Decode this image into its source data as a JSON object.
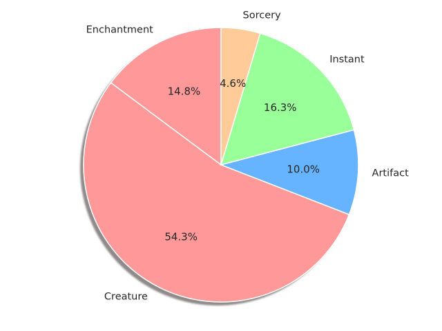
{
  "chart_data": {
    "type": "pie",
    "title": "",
    "start_angle_deg": 90,
    "direction": "counterclockwise",
    "shadow": true,
    "slices": [
      {
        "label": "Enchantment",
        "percent": 14.8,
        "value_label": "14.8%",
        "color": "#ff9999"
      },
      {
        "label": "Creature",
        "percent": 54.3,
        "value_label": "54.3%",
        "color": "#ff9999"
      },
      {
        "label": "Artifact",
        "percent": 10.0,
        "value_label": "10.0%",
        "color": "#66b3ff"
      },
      {
        "label": "Instant",
        "percent": 16.3,
        "value_label": "16.3%",
        "color": "#99ff99"
      },
      {
        "label": "Sorcery",
        "percent": 4.6,
        "value_label": "4.6%",
        "color": "#ffcc99"
      }
    ]
  }
}
